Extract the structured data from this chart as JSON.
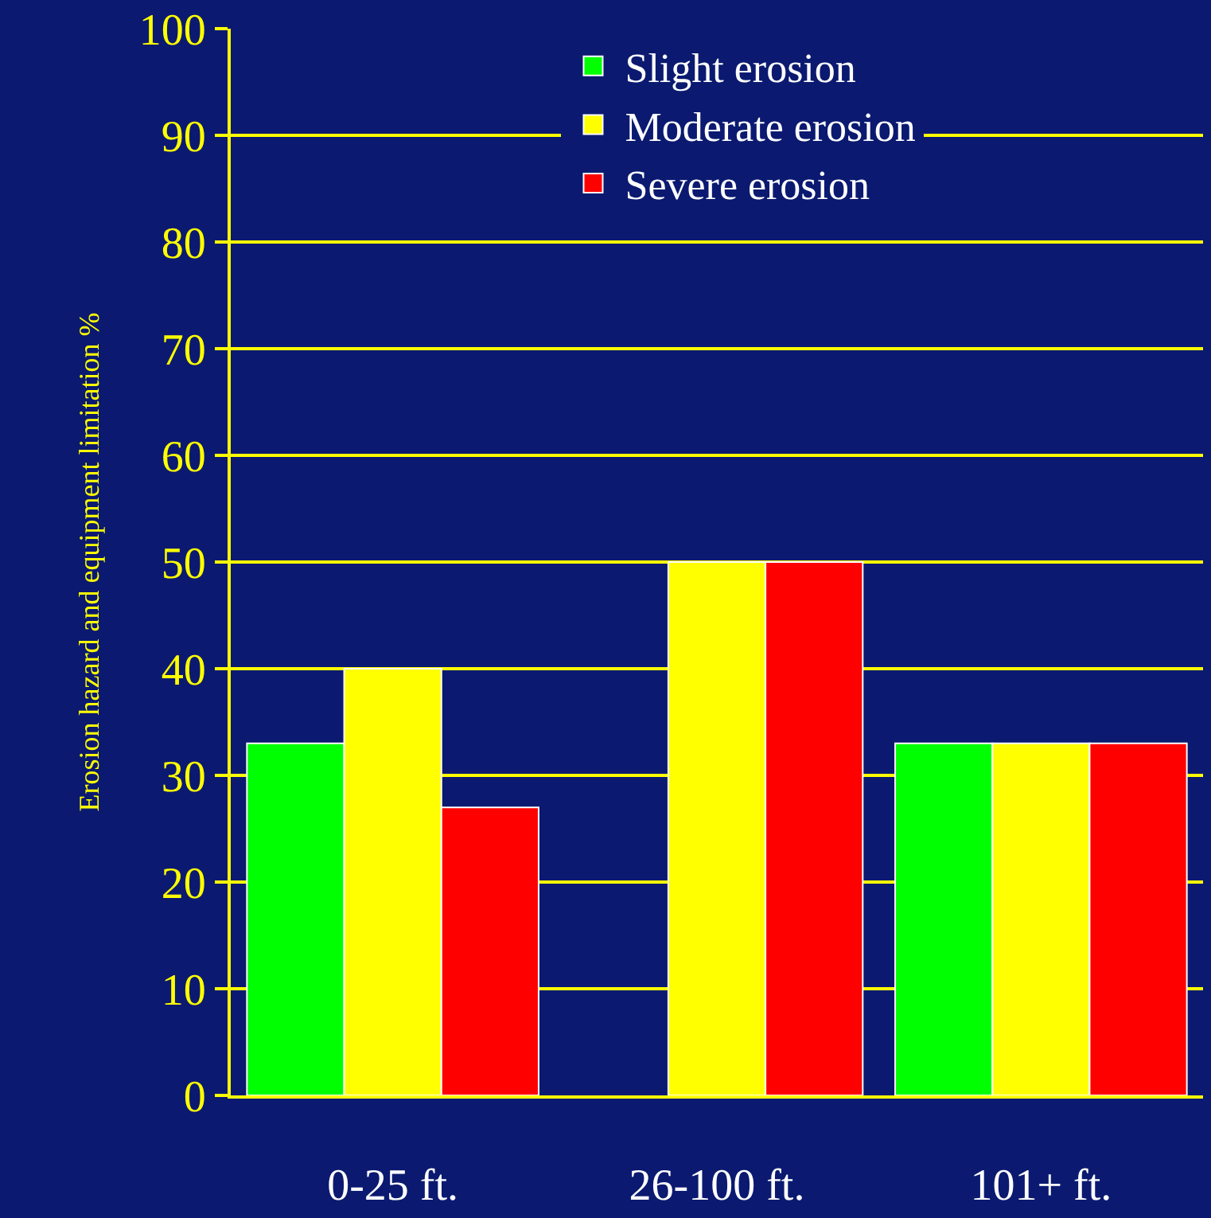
{
  "chart_data": {
    "type": "bar",
    "ylabel": "Erosion hazard and equipment limitation %",
    "categories": [
      "0-25 ft.",
      "26-100 ft.",
      "101+ ft."
    ],
    "series": [
      {
        "name": "Slight erosion",
        "color": "#00ff00",
        "values": [
          33,
          null,
          33
        ]
      },
      {
        "name": "Moderate erosion",
        "color": "#ffff00",
        "values": [
          40,
          50,
          33
        ]
      },
      {
        "name": "Severe erosion",
        "color": "#ff0000",
        "values": [
          27,
          50,
          33
        ]
      }
    ],
    "ylim": [
      0,
      100
    ],
    "yticks": [
      0,
      10,
      20,
      30,
      40,
      50,
      60,
      70,
      80,
      90,
      100
    ],
    "grid": "y",
    "legend": "top right"
  }
}
